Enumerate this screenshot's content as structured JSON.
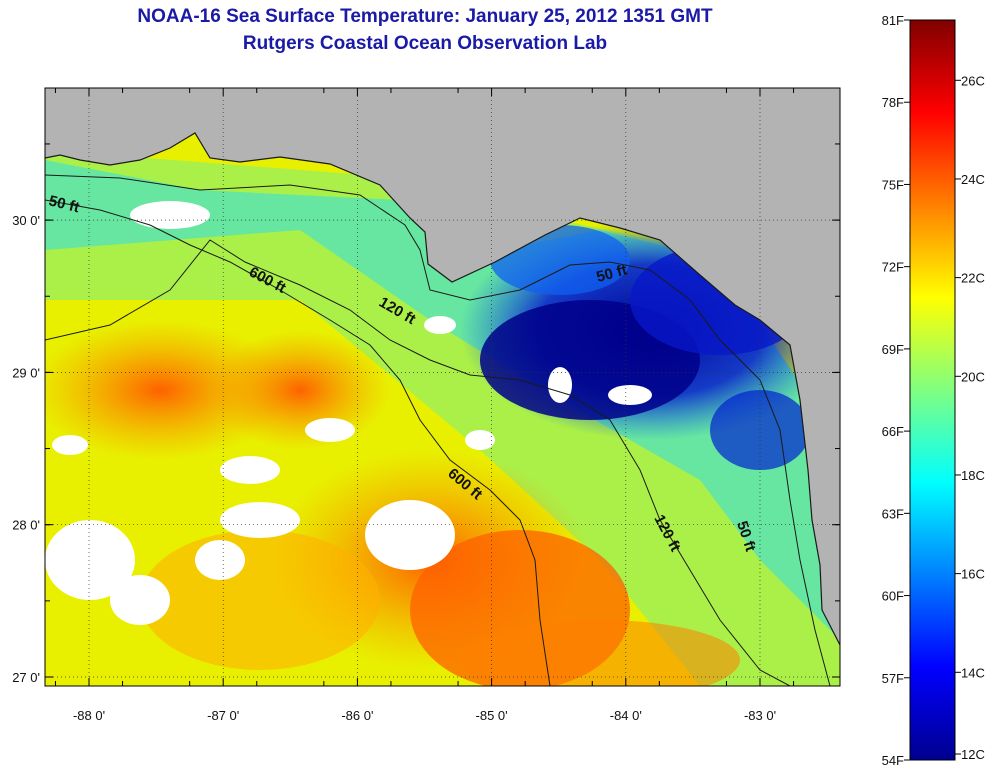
{
  "title": {
    "line1": "NOAA-16 Sea Surface Temperature:  January 25, 2012 1351 GMT",
    "line2": "Rutgers Coastal Ocean Observation Lab"
  },
  "colors": {
    "land": "#b3b3b3",
    "cloud": "#ffffff",
    "coast": "#1a1a1a",
    "title": "#1a1aa6"
  },
  "map": {
    "lon_ticks": [
      "-88 0'",
      "-87 0'",
      "-86 0'",
      "-85 0'",
      "-84 0'",
      "-83 0'"
    ],
    "lat_ticks": [
      "27 0'",
      "28 0'",
      "29 0'",
      "30 0'"
    ],
    "lon_values": [
      -88,
      -87,
      -86,
      -85,
      -84,
      -83
    ],
    "lat_values": [
      27,
      28,
      29,
      30
    ],
    "depth_labels": [
      "50 ft",
      "600 ft",
      "120 ft",
      "50 ft",
      "600 ft",
      "120 ft",
      "50 ft"
    ]
  },
  "colorbar": {
    "f_labels": [
      "81F",
      "78F",
      "75F",
      "72F",
      "69F",
      "66F",
      "63F",
      "60F",
      "57F",
      "54F"
    ],
    "c_labels": [
      "26C",
      "24C",
      "22C",
      "20C",
      "18C",
      "16C",
      "14C",
      "12C"
    ],
    "range_c": [
      12,
      27.2
    ],
    "gradient": [
      "#00008f",
      "#0000ff",
      "#0080ff",
      "#00ffff",
      "#80ff80",
      "#ffff00",
      "#ff8000",
      "#ff0000",
      "#800000"
    ]
  }
}
